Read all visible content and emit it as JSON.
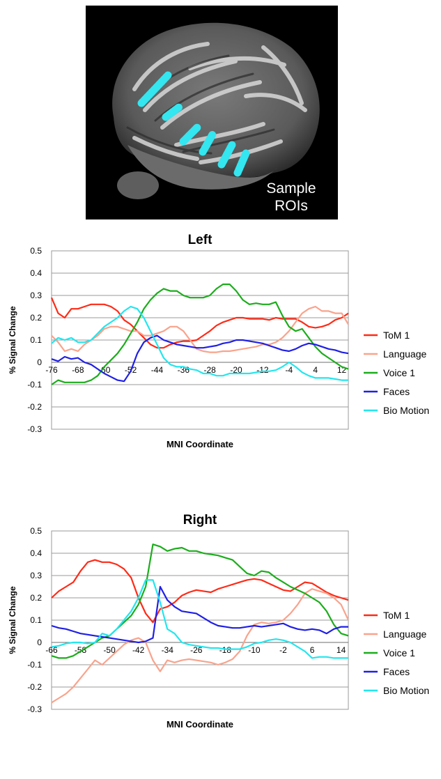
{
  "roi_panel": {
    "caption_line1": "Sample",
    "caption_line2": "ROIs",
    "roi_color": "#33e6f0"
  },
  "colors": {
    "ToM 1": "#ff2a16",
    "Language": "#f9a38c",
    "Voice 1": "#1bad1b",
    "Faces": "#1f1fe6",
    "Bio Motion": "#22e6ee"
  },
  "chart_data": [
    {
      "type": "line",
      "title": "Left",
      "xlabel": "MNI Coordinate",
      "ylabel": "% Signal Change",
      "ylim": [
        -0.3,
        0.5
      ],
      "yticks": [
        "0.5",
        "0.4",
        "0.3",
        "0.2",
        "0.1",
        "0",
        "-0.1",
        "-0.2",
        "-0.3"
      ],
      "xlim": [
        -76,
        14
      ],
      "xticks": [
        "-76",
        "-68",
        "-60",
        "-52",
        "-44",
        "-36",
        "-28",
        "-20",
        "-12",
        "-4",
        "4",
        "12"
      ],
      "grid": true,
      "legend": "right",
      "series": [
        {
          "name": "ToM 1",
          "x": [
            -76,
            -74,
            -72,
            -70,
            -68,
            -66,
            -64,
            -62,
            -60,
            -58,
            -56,
            -54,
            -52,
            -50,
            -48,
            -46,
            -44,
            -42,
            -40,
            -38,
            -36,
            -34,
            -32,
            -30,
            -28,
            -26,
            -24,
            -22,
            -20,
            -18,
            -16,
            -14,
            -12,
            -10,
            -8,
            -6,
            -4,
            -2,
            0,
            2,
            4,
            6,
            8,
            10,
            12,
            14
          ],
          "y": [
            0.29,
            0.22,
            0.2,
            0.24,
            0.24,
            0.25,
            0.26,
            0.26,
            0.26,
            0.25,
            0.23,
            0.19,
            0.17,
            0.14,
            0.11,
            0.08,
            0.065,
            0.065,
            0.08,
            0.09,
            0.095,
            0.095,
            0.1,
            0.12,
            0.14,
            0.165,
            0.18,
            0.19,
            0.2,
            0.2,
            0.195,
            0.195,
            0.195,
            0.19,
            0.2,
            0.195,
            0.195,
            0.195,
            0.18,
            0.16,
            0.155,
            0.16,
            0.17,
            0.19,
            0.2,
            0.22
          ]
        },
        {
          "name": "Language",
          "x": [
            -76,
            -74,
            -72,
            -70,
            -68,
            -66,
            -64,
            -62,
            -60,
            -58,
            -56,
            -54,
            -52,
            -50,
            -48,
            -46,
            -44,
            -42,
            -40,
            -38,
            -36,
            -34,
            -32,
            -30,
            -28,
            -26,
            -24,
            -22,
            -20,
            -18,
            -16,
            -14,
            -12,
            -10,
            -8,
            -6,
            -4,
            -2,
            0,
            2,
            4,
            6,
            8,
            10,
            12,
            14
          ],
          "y": [
            0.12,
            0.09,
            0.05,
            0.06,
            0.05,
            0.08,
            0.1,
            0.12,
            0.15,
            0.16,
            0.16,
            0.15,
            0.14,
            0.14,
            0.12,
            0.12,
            0.13,
            0.14,
            0.16,
            0.16,
            0.14,
            0.1,
            0.06,
            0.05,
            0.045,
            0.045,
            0.05,
            0.05,
            0.055,
            0.06,
            0.065,
            0.07,
            0.08,
            0.08,
            0.09,
            0.11,
            0.14,
            0.18,
            0.22,
            0.24,
            0.25,
            0.23,
            0.23,
            0.22,
            0.22,
            0.17
          ]
        },
        {
          "name": "Voice 1",
          "x": [
            -76,
            -74,
            -72,
            -70,
            -68,
            -66,
            -64,
            -62,
            -60,
            -58,
            -56,
            -54,
            -52,
            -50,
            -48,
            -46,
            -44,
            -42,
            -40,
            -38,
            -36,
            -34,
            -32,
            -30,
            -28,
            -26,
            -24,
            -22,
            -20,
            -18,
            -16,
            -14,
            -12,
            -10,
            -8,
            -6,
            -4,
            -2,
            0,
            2,
            4,
            6,
            8,
            10,
            12,
            14
          ],
          "y": [
            -0.1,
            -0.08,
            -0.09,
            -0.09,
            -0.09,
            -0.09,
            -0.08,
            -0.06,
            -0.02,
            0.01,
            0.04,
            0.08,
            0.13,
            0.18,
            0.24,
            0.28,
            0.31,
            0.33,
            0.32,
            0.32,
            0.3,
            0.29,
            0.29,
            0.29,
            0.3,
            0.33,
            0.35,
            0.35,
            0.32,
            0.28,
            0.26,
            0.265,
            0.26,
            0.26,
            0.27,
            0.21,
            0.16,
            0.14,
            0.15,
            0.11,
            0.07,
            0.04,
            0.02,
            0.0,
            -0.02,
            -0.03
          ]
        },
        {
          "name": "Faces",
          "x": [
            -76,
            -74,
            -72,
            -70,
            -68,
            -66,
            -64,
            -62,
            -60,
            -58,
            -56,
            -54,
            -52,
            -50,
            -48,
            -46,
            -44,
            -42,
            -40,
            -38,
            -36,
            -34,
            -32,
            -30,
            -28,
            -26,
            -24,
            -22,
            -20,
            -18,
            -16,
            -14,
            -12,
            -10,
            -8,
            -6,
            -4,
            -2,
            0,
            2,
            4,
            6,
            8,
            10,
            12,
            14
          ],
          "y": [
            0.015,
            0.005,
            0.025,
            0.015,
            0.02,
            0.0,
            -0.01,
            -0.03,
            -0.05,
            -0.065,
            -0.08,
            -0.085,
            -0.04,
            0.04,
            0.09,
            0.11,
            0.12,
            0.1,
            0.09,
            0.08,
            0.075,
            0.07,
            0.065,
            0.065,
            0.07,
            0.075,
            0.085,
            0.09,
            0.1,
            0.1,
            0.095,
            0.09,
            0.085,
            0.075,
            0.065,
            0.055,
            0.05,
            0.06,
            0.075,
            0.085,
            0.08,
            0.07,
            0.06,
            0.055,
            0.045,
            0.04
          ]
        },
        {
          "name": "Bio Motion",
          "x": [
            -76,
            -74,
            -72,
            -70,
            -68,
            -66,
            -64,
            -62,
            -60,
            -58,
            -56,
            -54,
            -52,
            -50,
            -48,
            -46,
            -44,
            -42,
            -40,
            -38,
            -36,
            -34,
            -32,
            -30,
            -28,
            -26,
            -24,
            -22,
            -20,
            -18,
            -16,
            -14,
            -12,
            -10,
            -8,
            -6,
            -4,
            -2,
            0,
            2,
            4,
            6,
            8,
            10,
            12,
            14
          ],
          "y": [
            0.085,
            0.11,
            0.1,
            0.11,
            0.09,
            0.09,
            0.1,
            0.13,
            0.16,
            0.18,
            0.2,
            0.23,
            0.25,
            0.24,
            0.2,
            0.14,
            0.08,
            0.02,
            -0.01,
            -0.02,
            -0.02,
            -0.03,
            -0.035,
            -0.05,
            -0.05,
            -0.06,
            -0.06,
            -0.05,
            -0.05,
            -0.05,
            -0.05,
            -0.045,
            -0.04,
            -0.04,
            -0.035,
            -0.02,
            0.0,
            -0.02,
            -0.045,
            -0.06,
            -0.07,
            -0.07,
            -0.07,
            -0.075,
            -0.08,
            -0.08
          ]
        }
      ]
    },
    {
      "type": "line",
      "title": "Right",
      "xlabel": "MNI Coordinate",
      "ylabel": "% Signal Change",
      "ylim": [
        -0.3,
        0.5
      ],
      "yticks": [
        "0.5",
        "0.4",
        "0.3",
        "0.2",
        "0.1",
        "0",
        "-0.1",
        "-0.2",
        "-0.3"
      ],
      "xlim": [
        -66,
        16
      ],
      "xticks": [
        "-66",
        "-58",
        "-50",
        "-42",
        "-34",
        "-26",
        "-18",
        "-10",
        "-2",
        "6",
        "14"
      ],
      "grid": true,
      "legend": "right",
      "series": [
        {
          "name": "ToM 1",
          "x": [
            -66,
            -64,
            -62,
            -60,
            -58,
            -56,
            -54,
            -52,
            -50,
            -48,
            -46,
            -44,
            -42,
            -40,
            -38,
            -36,
            -34,
            -32,
            -30,
            -28,
            -26,
            -24,
            -22,
            -20,
            -18,
            -16,
            -14,
            -12,
            -10,
            -8,
            -6,
            -4,
            -2,
            0,
            2,
            4,
            6,
            8,
            10,
            12,
            14,
            16
          ],
          "y": [
            0.2,
            0.23,
            0.25,
            0.27,
            0.32,
            0.36,
            0.37,
            0.36,
            0.36,
            0.35,
            0.33,
            0.29,
            0.2,
            0.13,
            0.09,
            0.15,
            0.16,
            0.18,
            0.21,
            0.225,
            0.235,
            0.23,
            0.225,
            0.24,
            0.25,
            0.26,
            0.27,
            0.28,
            0.285,
            0.28,
            0.265,
            0.25,
            0.235,
            0.23,
            0.25,
            0.27,
            0.265,
            0.245,
            0.225,
            0.21,
            0.2,
            0.19
          ]
        },
        {
          "name": "Language",
          "x": [
            -66,
            -64,
            -62,
            -60,
            -58,
            -56,
            -54,
            -52,
            -50,
            -48,
            -46,
            -44,
            -42,
            -40,
            -38,
            -36,
            -34,
            -32,
            -30,
            -28,
            -26,
            -24,
            -22,
            -20,
            -18,
            -16,
            -14,
            -12,
            -10,
            -8,
            -6,
            -4,
            -2,
            0,
            2,
            4,
            6,
            8,
            10,
            12,
            14,
            16
          ],
          "y": [
            -0.27,
            -0.25,
            -0.23,
            -0.2,
            -0.16,
            -0.12,
            -0.08,
            -0.1,
            -0.07,
            -0.04,
            -0.01,
            0.01,
            0.02,
            0.0,
            -0.08,
            -0.13,
            -0.08,
            -0.09,
            -0.08,
            -0.075,
            -0.08,
            -0.085,
            -0.09,
            -0.1,
            -0.09,
            -0.075,
            -0.04,
            0.03,
            0.08,
            0.09,
            0.085,
            0.09,
            0.1,
            0.13,
            0.17,
            0.22,
            0.24,
            0.23,
            0.22,
            0.2,
            0.17,
            0.1
          ]
        },
        {
          "name": "Voice 1",
          "x": [
            -66,
            -64,
            -62,
            -60,
            -58,
            -56,
            -54,
            -52,
            -50,
            -48,
            -46,
            -44,
            -42,
            -40,
            -38,
            -36,
            -34,
            -32,
            -30,
            -28,
            -26,
            -24,
            -22,
            -20,
            -18,
            -16,
            -14,
            -12,
            -10,
            -8,
            -6,
            -4,
            -2,
            0,
            2,
            4,
            6,
            8,
            10,
            12,
            14,
            16
          ],
          "y": [
            -0.06,
            -0.07,
            -0.07,
            -0.06,
            -0.04,
            -0.02,
            0.0,
            0.02,
            0.03,
            0.06,
            0.09,
            0.12,
            0.17,
            0.25,
            0.44,
            0.43,
            0.41,
            0.42,
            0.425,
            0.41,
            0.41,
            0.4,
            0.395,
            0.39,
            0.38,
            0.37,
            0.34,
            0.31,
            0.3,
            0.32,
            0.315,
            0.29,
            0.27,
            0.25,
            0.235,
            0.22,
            0.2,
            0.18,
            0.14,
            0.08,
            0.04,
            0.03
          ]
        },
        {
          "name": "Faces",
          "x": [
            -66,
            -64,
            -62,
            -60,
            -58,
            -56,
            -54,
            -52,
            -50,
            -48,
            -46,
            -44,
            -42,
            -40,
            -38,
            -36,
            -34,
            -32,
            -30,
            -28,
            -26,
            -24,
            -22,
            -20,
            -18,
            -16,
            -14,
            -12,
            -10,
            -8,
            -6,
            -4,
            -2,
            0,
            2,
            4,
            6,
            8,
            10,
            12,
            14,
            16
          ],
          "y": [
            0.075,
            0.065,
            0.06,
            0.05,
            0.04,
            0.035,
            0.03,
            0.025,
            0.02,
            0.015,
            0.01,
            0.005,
            0.0,
            0.005,
            0.02,
            0.25,
            0.19,
            0.16,
            0.14,
            0.135,
            0.13,
            0.11,
            0.09,
            0.075,
            0.07,
            0.065,
            0.065,
            0.07,
            0.075,
            0.07,
            0.075,
            0.08,
            0.085,
            0.07,
            0.06,
            0.055,
            0.06,
            0.055,
            0.04,
            0.06,
            0.07,
            0.07
          ]
        },
        {
          "name": "Bio Motion",
          "x": [
            -66,
            -64,
            -62,
            -60,
            -58,
            -56,
            -54,
            -52,
            -50,
            -48,
            -46,
            -44,
            -42,
            -40,
            -38,
            -36,
            -34,
            -32,
            -30,
            -28,
            -26,
            -24,
            -22,
            -20,
            -18,
            -16,
            -14,
            -12,
            -10,
            -8,
            -6,
            -4,
            -2,
            0,
            2,
            4,
            6,
            8,
            10,
            12,
            14,
            16
          ],
          "y": [
            -0.02,
            -0.015,
            -0.005,
            0.0,
            0.0,
            -0.005,
            0.0,
            0.04,
            0.03,
            0.06,
            0.1,
            0.14,
            0.2,
            0.28,
            0.28,
            0.18,
            0.06,
            0.04,
            0.0,
            -0.01,
            -0.015,
            -0.02,
            -0.025,
            -0.025,
            -0.03,
            -0.03,
            -0.03,
            -0.02,
            -0.005,
            0.0,
            0.01,
            0.015,
            0.01,
            0.0,
            -0.02,
            -0.04,
            -0.07,
            -0.065,
            -0.065,
            -0.07,
            -0.07,
            -0.07
          ]
        }
      ]
    }
  ]
}
